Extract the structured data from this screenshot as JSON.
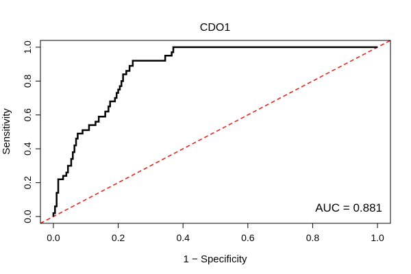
{
  "chart_data": {
    "type": "line",
    "title": "CDO1",
    "xlabel": "1 − Specificity",
    "ylabel": "Sensitivity",
    "xlim": [
      -0.04,
      1.04
    ],
    "ylim": [
      -0.04,
      1.04
    ],
    "x_ticks": [
      0.0,
      0.2,
      0.4,
      0.6,
      0.8,
      1.0
    ],
    "y_ticks": [
      0.0,
      0.2,
      0.4,
      0.6,
      0.8,
      1.0
    ],
    "x_tick_labels": [
      "0.0",
      "0.2",
      "0.4",
      "0.6",
      "0.8",
      "1.0"
    ],
    "y_tick_labels": [
      "0.0",
      "0.2",
      "0.4",
      "0.6",
      "0.8",
      "1.0"
    ],
    "grid": false,
    "annotation": "AUC = 0.881",
    "series": [
      {
        "color": "#000000",
        "style": "solid",
        "points": [
          [
            0.0,
            0.0
          ],
          [
            0.0,
            0.02
          ],
          [
            0.005,
            0.02
          ],
          [
            0.005,
            0.06
          ],
          [
            0.01,
            0.06
          ],
          [
            0.01,
            0.14
          ],
          [
            0.015,
            0.14
          ],
          [
            0.015,
            0.22
          ],
          [
            0.03,
            0.22
          ],
          [
            0.03,
            0.24
          ],
          [
            0.04,
            0.24
          ],
          [
            0.04,
            0.26
          ],
          [
            0.045,
            0.26
          ],
          [
            0.045,
            0.3
          ],
          [
            0.055,
            0.3
          ],
          [
            0.055,
            0.34
          ],
          [
            0.06,
            0.34
          ],
          [
            0.06,
            0.38
          ],
          [
            0.065,
            0.38
          ],
          [
            0.065,
            0.42
          ],
          [
            0.07,
            0.42
          ],
          [
            0.07,
            0.46
          ],
          [
            0.075,
            0.46
          ],
          [
            0.075,
            0.49
          ],
          [
            0.09,
            0.49
          ],
          [
            0.09,
            0.51
          ],
          [
            0.11,
            0.51
          ],
          [
            0.11,
            0.54
          ],
          [
            0.13,
            0.54
          ],
          [
            0.13,
            0.56
          ],
          [
            0.14,
            0.56
          ],
          [
            0.14,
            0.59
          ],
          [
            0.16,
            0.59
          ],
          [
            0.16,
            0.62
          ],
          [
            0.17,
            0.62
          ],
          [
            0.17,
            0.65
          ],
          [
            0.175,
            0.65
          ],
          [
            0.175,
            0.68
          ],
          [
            0.19,
            0.68
          ],
          [
            0.19,
            0.7
          ],
          [
            0.195,
            0.7
          ],
          [
            0.195,
            0.73
          ],
          [
            0.2,
            0.73
          ],
          [
            0.2,
            0.75
          ],
          [
            0.205,
            0.75
          ],
          [
            0.205,
            0.77
          ],
          [
            0.21,
            0.77
          ],
          [
            0.21,
            0.8
          ],
          [
            0.215,
            0.8
          ],
          [
            0.215,
            0.84
          ],
          [
            0.225,
            0.84
          ],
          [
            0.225,
            0.86
          ],
          [
            0.235,
            0.86
          ],
          [
            0.235,
            0.89
          ],
          [
            0.245,
            0.89
          ],
          [
            0.245,
            0.92
          ],
          [
            0.345,
            0.92
          ],
          [
            0.345,
            0.95
          ],
          [
            0.365,
            0.95
          ],
          [
            0.365,
            0.97
          ],
          [
            0.37,
            0.97
          ],
          [
            0.37,
            1.0
          ],
          [
            1.0,
            1.0
          ]
        ]
      },
      {
        "color": "#e8231f",
        "style": "dashed",
        "points": [
          [
            -0.04,
            -0.04
          ],
          [
            1.04,
            1.04
          ]
        ]
      }
    ]
  }
}
